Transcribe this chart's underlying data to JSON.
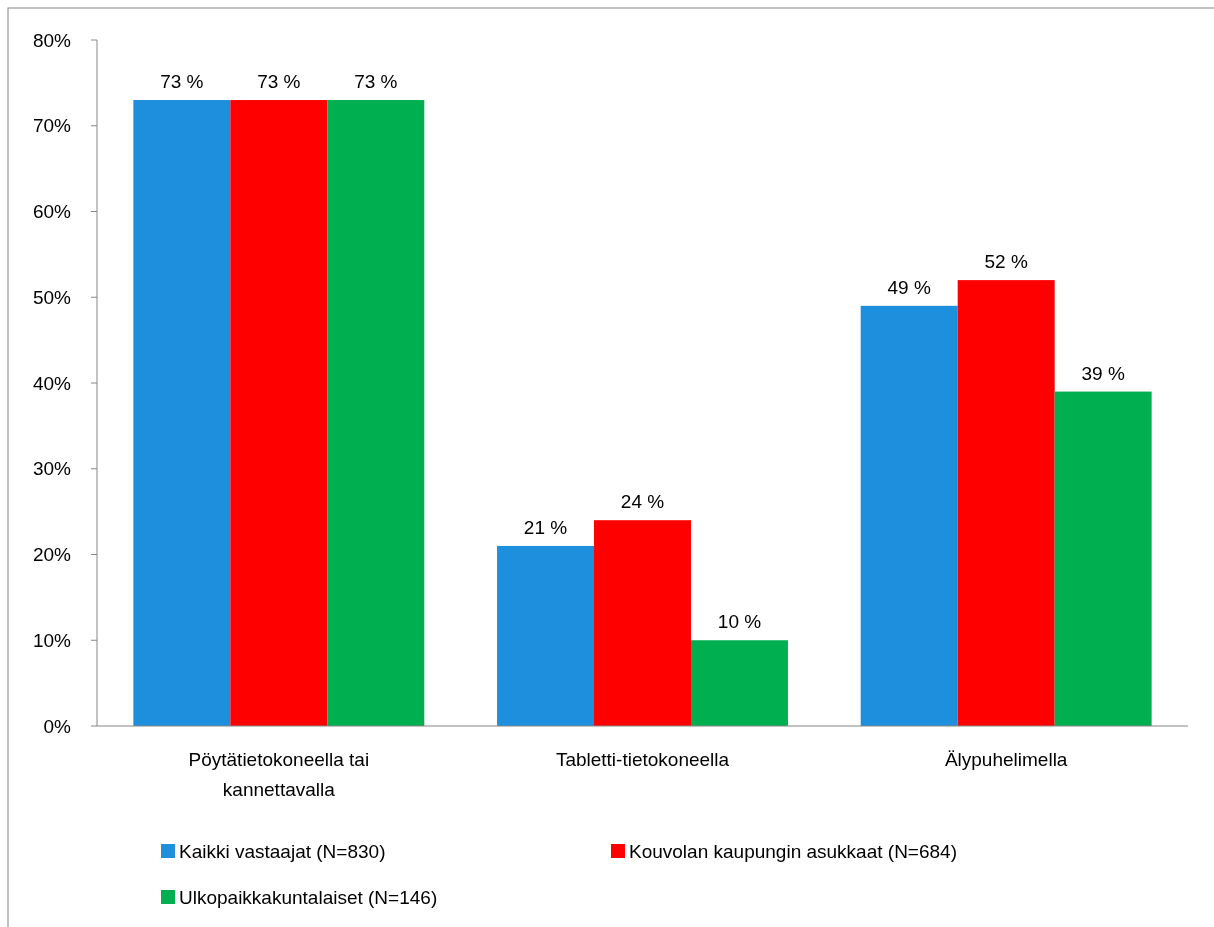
{
  "chart_data": {
    "type": "bar",
    "categories": [
      "Pöytätietokoneella tai kannettavalla",
      "Tabletti-tietokoneella",
      "Älypuhelimella"
    ],
    "series": [
      {
        "name": "Kaikki vastaajat (N=830)",
        "color": "#1e8fdc",
        "values": [
          73,
          21,
          49
        ],
        "value_labels": [
          "73 %",
          "21 %",
          "49 %"
        ]
      },
      {
        "name": "Kouvolan kaupungin asukkaat (N=684)",
        "color": "#ff0000",
        "values": [
          73,
          24,
          52
        ],
        "value_labels": [
          "73 %",
          "24 %",
          "52 %"
        ]
      },
      {
        "name": "Ulkopaikkakuntalaiset (N=146)",
        "color": "#00b050",
        "values": [
          73,
          10,
          39
        ],
        "value_labels": [
          "73 %",
          "10 %",
          "39 %"
        ]
      }
    ],
    "ylim": [
      0,
      80
    ],
    "yticks": [
      {
        "value": 0,
        "label": "0%"
      },
      {
        "value": 10,
        "label": "10%"
      },
      {
        "value": 20,
        "label": "20%"
      },
      {
        "value": 30,
        "label": "30%"
      },
      {
        "value": 40,
        "label": "40%"
      },
      {
        "value": 50,
        "label": "50%"
      },
      {
        "value": 60,
        "label": "60%"
      },
      {
        "value": 70,
        "label": "70%"
      },
      {
        "value": 80,
        "label": "80%"
      }
    ],
    "grid": false,
    "legend": "bottom"
  }
}
